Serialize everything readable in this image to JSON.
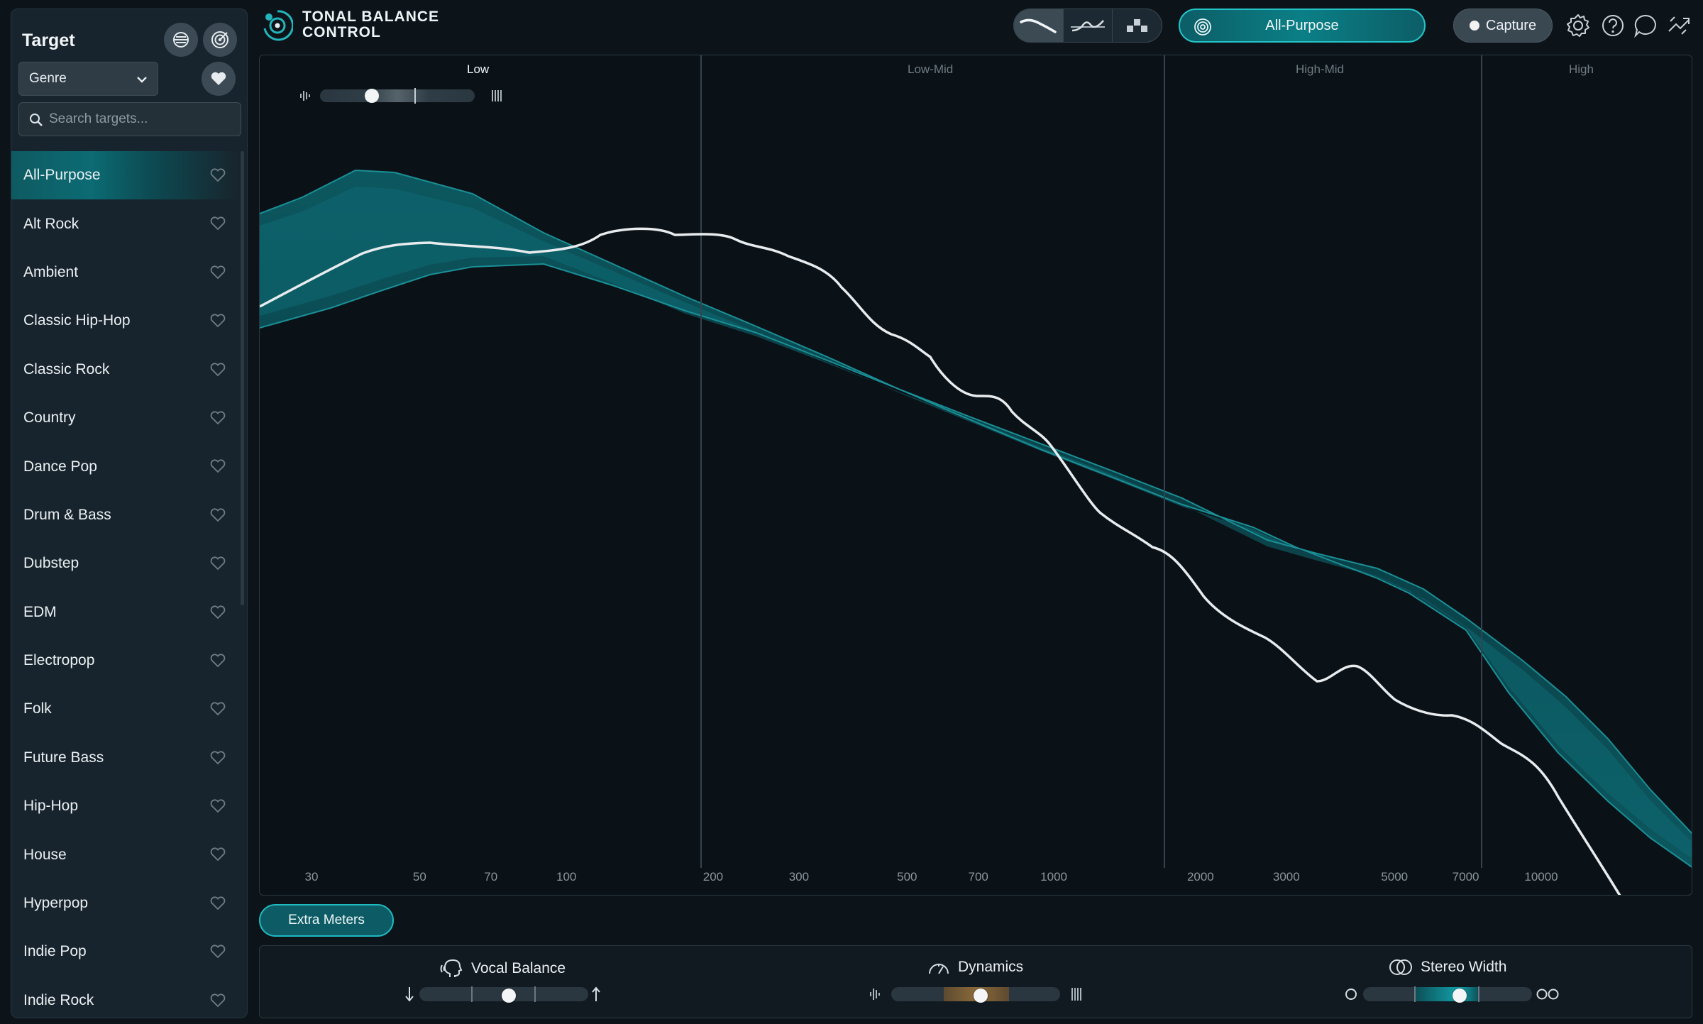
{
  "sidebar": {
    "title": "Target",
    "genre_select": {
      "value": "Genre"
    },
    "search": {
      "placeholder": "Search targets..."
    },
    "targets": [
      {
        "label": "All-Purpose",
        "active": true
      },
      {
        "label": "Alt Rock"
      },
      {
        "label": "Ambient"
      },
      {
        "label": "Classic Hip-Hop"
      },
      {
        "label": "Classic Rock"
      },
      {
        "label": "Country"
      },
      {
        "label": "Dance Pop"
      },
      {
        "label": "Drum & Bass"
      },
      {
        "label": "Dubstep"
      },
      {
        "label": "EDM"
      },
      {
        "label": "Electropop"
      },
      {
        "label": "Folk"
      },
      {
        "label": "Future Bass"
      },
      {
        "label": "Hip-Hop"
      },
      {
        "label": "House"
      },
      {
        "label": "Hyperpop"
      },
      {
        "label": "Indie Pop"
      },
      {
        "label": "Indie Rock"
      }
    ]
  },
  "header": {
    "app_name_line1": "TONAL BALANCE",
    "app_name_line2": "CONTROL",
    "active_view": "broad",
    "target_pill_label": "All-Purpose",
    "capture_label": "Capture",
    "icons": [
      "settings-icon",
      "help-icon",
      "chat-icon",
      "route-icon"
    ]
  },
  "spectrum": {
    "bands": [
      {
        "label": "Low",
        "active": true
      },
      {
        "label": "Low-Mid",
        "active": false
      },
      {
        "label": "High-Mid",
        "active": false
      },
      {
        "label": "High",
        "active": false
      }
    ],
    "freq_ticks": [
      "30",
      "50",
      "70",
      "100",
      "200",
      "300",
      "500",
      "700",
      "1000",
      "2000",
      "3000",
      "5000",
      "7000",
      "10000"
    ],
    "crest_slider_fraction": 0.32
  },
  "extra_meters_label": "Extra Meters",
  "meters": {
    "vocal_balance": {
      "title": "Vocal Balance",
      "position": 0.53
    },
    "dynamics": {
      "title": "Dynamics",
      "position": 0.53
    },
    "stereo_width": {
      "title": "Stereo Width",
      "position": 0.58
    }
  },
  "colors": {
    "accent": "#1fb9bf",
    "band_fill": "#0f6a72",
    "band_edge": "#1a8f96",
    "curve": "#e8ecef",
    "background": "#0d1419"
  }
}
